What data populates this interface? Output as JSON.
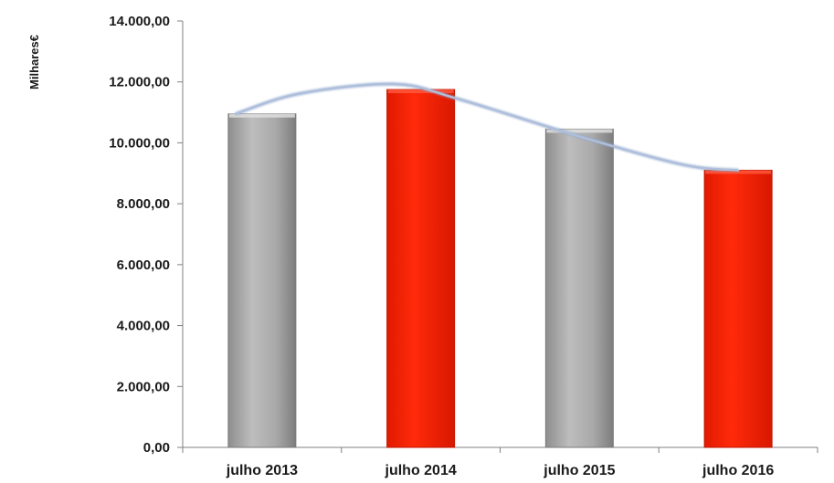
{
  "chart_data": {
    "type": "bar",
    "title": "",
    "ylabel": "Milhares€",
    "xlabel": "",
    "categories": [
      "julho  2013",
      "julho  2014",
      "julho  2015",
      "julho  2016"
    ],
    "values": [
      10950,
      11750,
      10450,
      9100
    ],
    "bar_colors": [
      "#a6a6a6",
      "#ff2200",
      "#a6a6a6",
      "#ff2200"
    ],
    "trendline": {
      "type": "polynomial",
      "color": "#aebfdc"
    },
    "ylim": [
      0,
      14000
    ],
    "yticks": [
      0,
      2000,
      4000,
      6000,
      8000,
      10000,
      12000,
      14000
    ],
    "ytick_labels": [
      "0,00",
      "2.000,00",
      "4.000,00",
      "6.000,00",
      "8.000,00",
      "10.000,00",
      "12.000,00",
      "14.000,00"
    ],
    "grid": false,
    "legend": "none"
  }
}
